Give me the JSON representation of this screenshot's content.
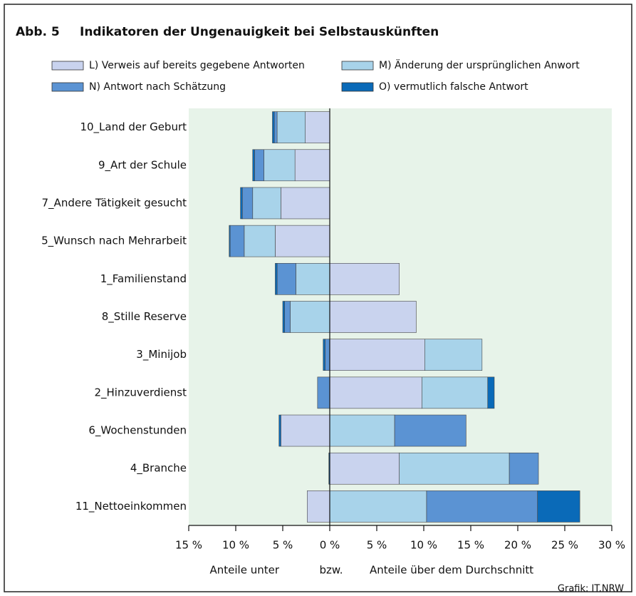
{
  "chart_data": {
    "type": "diverging-bar",
    "figure_number": "Abb. 5",
    "title": "Indikatoren der Ungenauigkeit bei Selbstauskünften",
    "categories": [
      "10_Land der Geburt",
      "9_Art der Schule",
      "7_Andere Tätigkeit gesucht",
      "5_Wunsch nach Mehrarbeit",
      "1_Familienstand",
      "8_Stille Reserve",
      "3_Minijob",
      "2_Hinzuverdienst",
      "6_Wochenstunden",
      "4_Branche",
      "11_Nettoeinkommen"
    ],
    "series": [
      {
        "name": "L) Verweis auf bereits gegebene Antworten",
        "color": "#c9d3ee",
        "values": [
          -2.6,
          -3.7,
          -5.2,
          -5.8,
          7.4,
          9.2,
          10.1,
          9.8,
          -5.2,
          7.4,
          -2.4
        ]
      },
      {
        "name": "M) Änderung der ursprünglichen Anwort",
        "color": "#a8d3ea",
        "values": [
          -3.0,
          -3.3,
          -3.0,
          -3.3,
          -3.6,
          -4.2,
          6.1,
          7.0,
          6.9,
          11.7,
          10.3
        ]
      },
      {
        "name": "N) Antwort nach Schätzung",
        "color": "#5b93d3",
        "values": [
          -0.3,
          -1.0,
          -1.1,
          -1.5,
          -2.0,
          -0.6,
          -0.5,
          -1.3,
          7.6,
          3.1,
          11.8
        ]
      },
      {
        "name": "O) vermutlich falsche Antwort",
        "color": "#0a6ab8",
        "values": [
          -0.2,
          -0.2,
          -0.2,
          -0.1,
          -0.2,
          -0.2,
          -0.2,
          0.7,
          -0.2,
          -0.1,
          4.5
        ]
      }
    ],
    "xlim": [
      -15,
      30
    ],
    "xticks": [
      {
        "value": -15,
        "label": "15 %"
      },
      {
        "value": -10,
        "label": "10 %"
      },
      {
        "value": -5,
        "label": "5 %"
      },
      {
        "value": 0,
        "label": "0 %"
      },
      {
        "value": 5,
        "label": "5 %"
      },
      {
        "value": 10,
        "label": "10 %"
      },
      {
        "value": 15,
        "label": "15 %"
      },
      {
        "value": 20,
        "label": "20 %"
      },
      {
        "value": 25,
        "label": "25 %"
      },
      {
        "value": 30,
        "label": "30 %"
      }
    ],
    "xlabel_left": "Anteile unter",
    "xlabel_middle": "bzw.",
    "xlabel_right": "Anteile über dem Durchschnitt",
    "source": "Grafik: IT.NRW",
    "background": "#e7f3e9"
  }
}
